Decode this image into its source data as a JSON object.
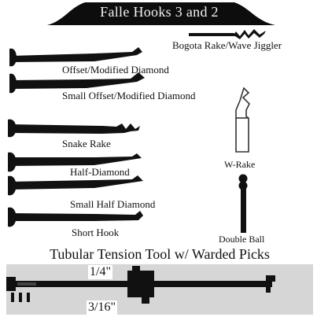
{
  "banner": {
    "title": "Falle Hooks 3 and 2"
  },
  "picks": [
    {
      "label": "Bogota Rake/Wave Jiggler"
    },
    {
      "label": "Offset/Modified Diamond"
    },
    {
      "label": "Small Offset/Modified Diamond"
    },
    {
      "label": "Snake Rake"
    },
    {
      "label": "Half-Diamond"
    },
    {
      "label": "Small Half Diamond"
    },
    {
      "label": "Short Hook"
    },
    {
      "label": "W-Rake"
    },
    {
      "label": "Double Ball"
    }
  ],
  "tubular": {
    "title": "Tubular Tension Tool w/ Warded Picks",
    "size_top": "1/4\"",
    "size_bottom": "3/16\""
  },
  "colors": {
    "ink": "#111111",
    "banner_text": "#f2f2f2",
    "tubular_band": "#d6d6d6"
  }
}
